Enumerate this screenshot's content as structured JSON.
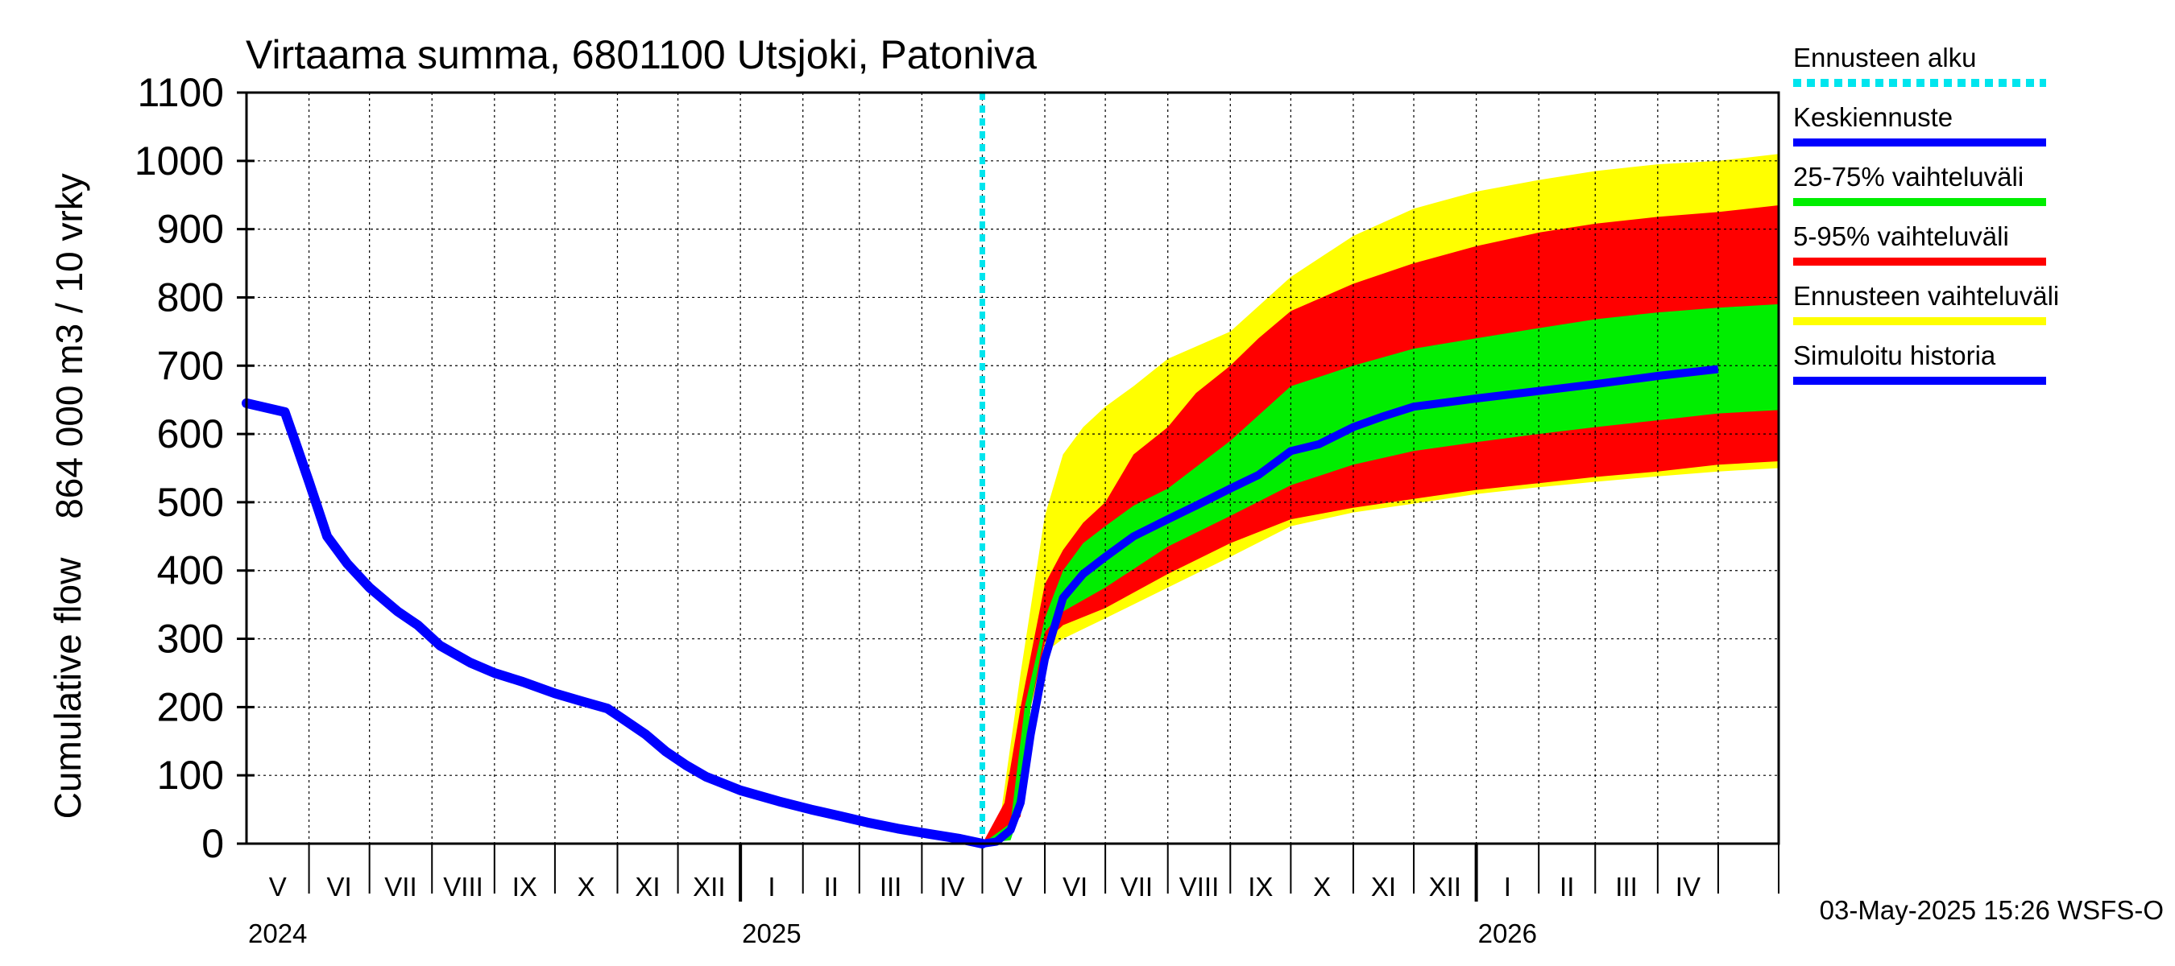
{
  "chart_data": {
    "type": "area",
    "title": "Virtaama summa, 6801100 Utsjoki, Patoniva",
    "ylabel_top": "864 000 m3 / 10 vrky",
    "ylabel_bottom": "Cumulative flow",
    "ylim": [
      0,
      1100
    ],
    "yticks": [
      "0",
      "100",
      "200",
      "300",
      "400",
      "500",
      "600",
      "700",
      "800",
      "900",
      "1000",
      "1100"
    ],
    "grid": true,
    "legend_position": "right",
    "x_start": "2024-05-01",
    "x_end": "2026-05-31",
    "month_labels": [
      "V",
      "VI",
      "VII",
      "VIII",
      "IX",
      "X",
      "XI",
      "XII",
      "I",
      "II",
      "III",
      "IV",
      "V",
      "VI",
      "VII",
      "VIII",
      "IX",
      "X",
      "XI",
      "XII",
      "I",
      "II",
      "III",
      "IV"
    ],
    "year_labels": [
      {
        "text": "2024",
        "date": "2024-05-01"
      },
      {
        "text": "2025",
        "date": "2025-01-01"
      },
      {
        "text": "2026",
        "date": "2026-01-01"
      }
    ],
    "forecast_start": "2025-05-01",
    "timestamp": "03-May-2025 15:26 WSFS-O",
    "colors": {
      "forecast_start": "#00e5ee",
      "mean": "#0000ff",
      "band_25_75": "#00ee00",
      "band_5_95": "#ff0000",
      "band_total": "#ffff00",
      "history": "#0000ff"
    },
    "legend": [
      {
        "label": "Ennusteen alku",
        "color": "#00e5ee",
        "dashed": true
      },
      {
        "label": "Keskiennuste",
        "color": "#0000ff"
      },
      {
        "label": "25-75% vaihteluväli",
        "color": "#00ee00"
      },
      {
        "label": "5-95% vaihteluväli",
        "color": "#ff0000"
      },
      {
        "label": "Ennusteen vaihteluväli",
        "color": "#ffff00"
      },
      {
        "label": "Simuloitu historia",
        "color": "#0000ff"
      }
    ],
    "history": [
      [
        "2024-05-01",
        645
      ],
      [
        "2024-05-20",
        632
      ],
      [
        "2024-05-25",
        590
      ],
      [
        "2024-06-01",
        530
      ],
      [
        "2024-06-10",
        450
      ],
      [
        "2024-06-20",
        410
      ],
      [
        "2024-07-01",
        375
      ],
      [
        "2024-07-15",
        340
      ],
      [
        "2024-07-25",
        320
      ],
      [
        "2024-08-05",
        290
      ],
      [
        "2024-08-20",
        265
      ],
      [
        "2024-09-01",
        250
      ],
      [
        "2024-09-15",
        237
      ],
      [
        "2024-10-01",
        220
      ],
      [
        "2024-10-15",
        208
      ],
      [
        "2024-10-27",
        198
      ],
      [
        "2024-11-05",
        180
      ],
      [
        "2024-11-15",
        160
      ],
      [
        "2024-11-25",
        135
      ],
      [
        "2024-12-05",
        115
      ],
      [
        "2024-12-15",
        98
      ],
      [
        "2025-01-01",
        78
      ],
      [
        "2025-01-20",
        62
      ],
      [
        "2025-02-05",
        50
      ],
      [
        "2025-02-20",
        40
      ],
      [
        "2025-03-05",
        31
      ],
      [
        "2025-03-20",
        22
      ],
      [
        "2025-04-05",
        14
      ],
      [
        "2025-04-20",
        7
      ],
      [
        "2025-05-01",
        0
      ]
    ],
    "mean_forecast": [
      [
        "2025-05-01",
        0
      ],
      [
        "2025-05-08",
        3
      ],
      [
        "2025-05-15",
        20
      ],
      [
        "2025-05-20",
        60
      ],
      [
        "2025-05-25",
        160
      ],
      [
        "2025-06-01",
        270
      ],
      [
        "2025-06-10",
        360
      ],
      [
        "2025-06-20",
        395
      ],
      [
        "2025-07-01",
        420
      ],
      [
        "2025-07-15",
        450
      ],
      [
        "2025-08-01",
        475
      ],
      [
        "2025-08-15",
        495
      ],
      [
        "2025-09-01",
        520
      ],
      [
        "2025-09-15",
        540
      ],
      [
        "2025-10-01",
        575
      ],
      [
        "2025-10-15",
        585
      ],
      [
        "2025-11-01",
        610
      ],
      [
        "2025-11-15",
        625
      ],
      [
        "2025-12-01",
        640
      ],
      [
        "2026-01-01",
        652
      ],
      [
        "2026-02-01",
        663
      ],
      [
        "2026-03-01",
        673
      ],
      [
        "2026-04-01",
        685
      ],
      [
        "2026-05-01",
        695
      ]
    ],
    "band_total": {
      "upper": [
        [
          "2025-05-01",
          0
        ],
        [
          "2025-05-10",
          40
        ],
        [
          "2025-05-20",
          250
        ],
        [
          "2025-06-01",
          480
        ],
        [
          "2025-06-10",
          570
        ],
        [
          "2025-06-20",
          610
        ],
        [
          "2025-07-01",
          640
        ],
        [
          "2025-07-15",
          670
        ],
        [
          "2025-08-01",
          710
        ],
        [
          "2025-09-01",
          750
        ],
        [
          "2025-10-01",
          830
        ],
        [
          "2025-11-01",
          890
        ],
        [
          "2025-12-01",
          930
        ],
        [
          "2026-01-01",
          955
        ],
        [
          "2026-02-01",
          972
        ],
        [
          "2026-03-01",
          985
        ],
        [
          "2026-04-01",
          995
        ],
        [
          "2026-05-01",
          1000
        ],
        [
          "2026-05-31",
          1010
        ]
      ],
      "lower": [
        [
          "2026-05-31",
          550
        ],
        [
          "2026-05-01",
          545
        ],
        [
          "2026-04-01",
          538
        ],
        [
          "2026-03-01",
          530
        ],
        [
          "2026-02-01",
          522
        ],
        [
          "2026-01-01",
          512
        ],
        [
          "2025-12-01",
          498
        ],
        [
          "2025-11-01",
          485
        ],
        [
          "2025-10-01",
          465
        ],
        [
          "2025-09-01",
          420
        ],
        [
          "2025-08-01",
          375
        ],
        [
          "2025-07-01",
          330
        ],
        [
          "2025-06-10",
          300
        ],
        [
          "2025-06-01",
          280
        ],
        [
          "2025-05-25",
          200
        ],
        [
          "2025-05-20",
          60
        ],
        [
          "2025-05-15",
          10
        ],
        [
          "2025-05-01",
          0
        ]
      ]
    },
    "band_5_95": {
      "upper": [
        [
          "2025-05-01",
          0
        ],
        [
          "2025-05-12",
          60
        ],
        [
          "2025-05-20",
          200
        ],
        [
          "2025-06-01",
          380
        ],
        [
          "2025-06-10",
          430
        ],
        [
          "2025-06-20",
          470
        ],
        [
          "2025-07-01",
          500
        ],
        [
          "2025-07-15",
          570
        ],
        [
          "2025-08-01",
          610
        ],
        [
          "2025-08-15",
          660
        ],
        [
          "2025-09-01",
          700
        ],
        [
          "2025-09-15",
          740
        ],
        [
          "2025-10-01",
          780
        ],
        [
          "2025-11-01",
          820
        ],
        [
          "2025-12-01",
          850
        ],
        [
          "2026-01-01",
          875
        ],
        [
          "2026-02-01",
          895
        ],
        [
          "2026-03-01",
          908
        ],
        [
          "2026-04-01",
          918
        ],
        [
          "2026-05-01",
          925
        ],
        [
          "2026-05-31",
          935
        ]
      ],
      "lower": [
        [
          "2026-05-31",
          560
        ],
        [
          "2026-05-01",
          555
        ],
        [
          "2026-04-01",
          545
        ],
        [
          "2026-03-01",
          537
        ],
        [
          "2026-02-01",
          528
        ],
        [
          "2026-01-01",
          518
        ],
        [
          "2025-12-01",
          505
        ],
        [
          "2025-11-01",
          492
        ],
        [
          "2025-10-01",
          475
        ],
        [
          "2025-09-01",
          440
        ],
        [
          "2025-08-01",
          395
        ],
        [
          "2025-07-01",
          345
        ],
        [
          "2025-06-10",
          320
        ],
        [
          "2025-06-01",
          295
        ],
        [
          "2025-05-25",
          200
        ],
        [
          "2025-05-20",
          40
        ],
        [
          "2025-05-12",
          10
        ],
        [
          "2025-05-01",
          0
        ]
      ]
    },
    "band_25_75": {
      "upper": [
        [
          "2025-05-01",
          0
        ],
        [
          "2025-05-15",
          30
        ],
        [
          "2025-05-22",
          200
        ],
        [
          "2025-06-01",
          330
        ],
        [
          "2025-06-10",
          400
        ],
        [
          "2025-06-20",
          440
        ],
        [
          "2025-07-01",
          465
        ],
        [
          "2025-07-15",
          495
        ],
        [
          "2025-08-01",
          520
        ],
        [
          "2025-09-01",
          590
        ],
        [
          "2025-10-01",
          670
        ],
        [
          "2025-11-01",
          700
        ],
        [
          "2025-12-01",
          725
        ],
        [
          "2026-01-01",
          740
        ],
        [
          "2026-02-01",
          755
        ],
        [
          "2026-03-01",
          768
        ],
        [
          "2026-04-01",
          778
        ],
        [
          "2026-05-01",
          785
        ],
        [
          "2026-05-31",
          790
        ]
      ],
      "lower": [
        [
          "2026-05-31",
          635
        ],
        [
          "2026-05-01",
          630
        ],
        [
          "2026-04-01",
          620
        ],
        [
          "2026-03-01",
          610
        ],
        [
          "2026-02-01",
          600
        ],
        [
          "2026-01-01",
          588
        ],
        [
          "2025-12-01",
          575
        ],
        [
          "2025-11-01",
          555
        ],
        [
          "2025-10-01",
          525
        ],
        [
          "2025-09-01",
          480
        ],
        [
          "2025-08-01",
          435
        ],
        [
          "2025-07-01",
          375
        ],
        [
          "2025-06-10",
          340
        ],
        [
          "2025-06-01",
          310
        ],
        [
          "2025-05-25",
          200
        ],
        [
          "2025-05-20",
          50
        ],
        [
          "2025-05-15",
          5
        ],
        [
          "2025-05-01",
          0
        ]
      ]
    }
  }
}
